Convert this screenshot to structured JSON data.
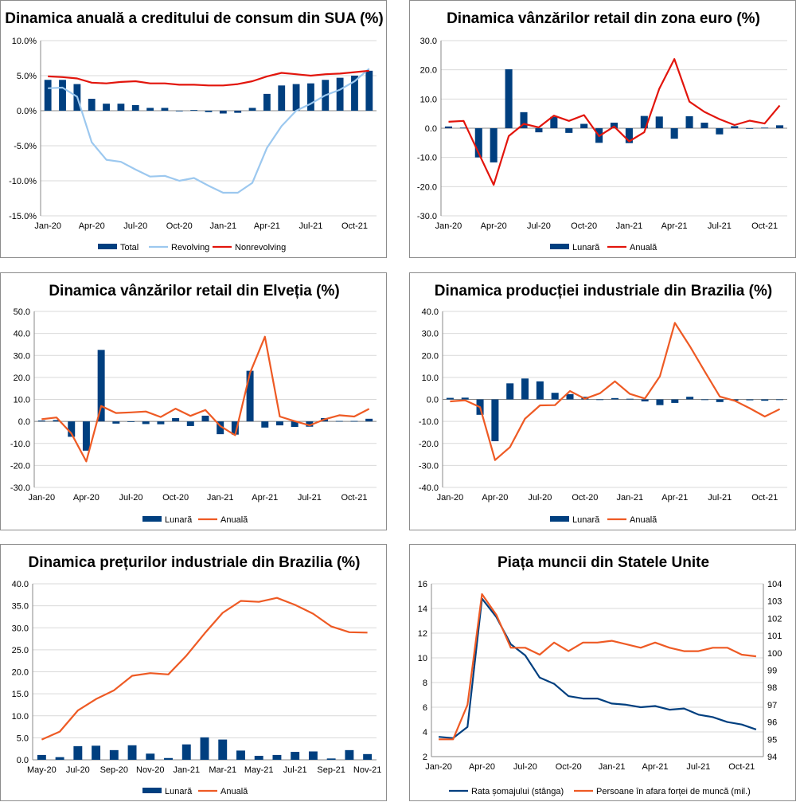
{
  "colors": {
    "bar": "#003f7f",
    "red": "#e2150c",
    "orange": "#ee5a24",
    "light_blue": "#9cc8ef",
    "grid": "#d9d9d9",
    "axis": "#888888"
  },
  "chart_data": [
    {
      "type": "bar",
      "title": "Dinamica anuală a creditului de consum din SUA (%)",
      "x_tick_labels": [
        "Jan-20",
        "Apr-20",
        "Jul-20",
        "Oct-20",
        "Jan-21",
        "Apr-21",
        "Jul-21",
        "Oct-21"
      ],
      "y_tick_labels": [
        "10.0%",
        "5.0%",
        "0.0%",
        "-5.0%",
        "-10.0%",
        "-15.0%"
      ],
      "ylim": [
        -15,
        10
      ],
      "categories": [
        "Jan-20",
        "Feb-20",
        "Mar-20",
        "Apr-20",
        "May-20",
        "Jun-20",
        "Jul-20",
        "Aug-20",
        "Sep-20",
        "Oct-20",
        "Nov-20",
        "Dec-20",
        "Jan-21",
        "Feb-21",
        "Mar-21",
        "Apr-21",
        "May-21",
        "Jun-21",
        "Jul-21",
        "Aug-21",
        "Sep-21",
        "Oct-21",
        "Nov-21"
      ],
      "series": [
        {
          "name": "Total",
          "kind": "bar",
          "color": "#003f7f",
          "values": [
            4.4,
            4.4,
            3.8,
            1.7,
            1.0,
            1.0,
            0.8,
            0.4,
            0.4,
            0.0,
            0.1,
            -0.2,
            -0.4,
            -0.3,
            0.4,
            2.4,
            3.6,
            3.8,
            3.9,
            4.4,
            4.7,
            5.0,
            5.7
          ]
        },
        {
          "name": "Revolving",
          "kind": "line",
          "color": "#9cc8ef",
          "values": [
            3.2,
            3.3,
            2.0,
            -4.5,
            -7.0,
            -7.3,
            -8.4,
            -9.4,
            -9.3,
            -10.0,
            -9.6,
            -10.7,
            -11.7,
            -11.7,
            -10.3,
            -5.3,
            -2.2,
            0.0,
            1.0,
            2.2,
            3.0,
            4.2,
            6.0
          ]
        },
        {
          "name": "Nonrevolving",
          "kind": "line",
          "color": "#e2150c",
          "values": [
            4.9,
            4.8,
            4.6,
            4.0,
            3.9,
            4.1,
            4.2,
            3.9,
            3.9,
            3.7,
            3.7,
            3.6,
            3.6,
            3.8,
            4.2,
            4.9,
            5.4,
            5.2,
            5.0,
            5.2,
            5.3,
            5.5,
            5.7
          ]
        }
      ]
    },
    {
      "type": "bar",
      "title": "Dinamica vânzărilor retail din zona euro (%)",
      "x_tick_labels": [
        "Jan-20",
        "Apr-20",
        "Jul-20",
        "Oct-20",
        "Jan-21",
        "Apr-21",
        "Jul-21",
        "Oct-21"
      ],
      "y_tick_labels": [
        "30.0",
        "20.0",
        "10.0",
        "0.0",
        "-10.0",
        "-20.0",
        "-30.0"
      ],
      "ylim": [
        -30,
        30
      ],
      "categories": [
        "Jan-20",
        "Feb-20",
        "Mar-20",
        "Apr-20",
        "May-20",
        "Jun-20",
        "Jul-20",
        "Aug-20",
        "Sep-20",
        "Oct-20",
        "Nov-20",
        "Dec-20",
        "Jan-21",
        "Feb-21",
        "Mar-21",
        "Apr-21",
        "May-21",
        "Jun-21",
        "Jul-21",
        "Aug-21",
        "Sep-21",
        "Oct-21",
        "Nov-21"
      ],
      "series": [
        {
          "name": "Lunară",
          "kind": "bar",
          "color": "#003f7f",
          "values": [
            0.6,
            0.2,
            -10.0,
            -11.7,
            20.2,
            5.5,
            -1.4,
            3.9,
            -1.6,
            1.5,
            -5.0,
            1.9,
            -5.1,
            4.2,
            4.0,
            -3.6,
            4.1,
            1.9,
            -2.1,
            0.7,
            -0.2,
            0.2,
            1.0
          ]
        },
        {
          "name": "Anuală",
          "kind": "line",
          "color": "#e2150c",
          "values": [
            2.2,
            2.5,
            -8.5,
            -19.4,
            -2.7,
            1.5,
            0.3,
            4.3,
            2.5,
            4.5,
            -2.7,
            0.6,
            -4.5,
            -1.4,
            13.5,
            23.7,
            9.1,
            5.6,
            3.1,
            1.1,
            2.6,
            1.6,
            7.8
          ]
        }
      ]
    },
    {
      "type": "bar",
      "title": "Dinamica vânzărilor retail din Elveția (%)",
      "x_tick_labels": [
        "Jan-20",
        "Apr-20",
        "Jul-20",
        "Oct-20",
        "Jan-21",
        "Apr-21",
        "Jul-21",
        "Oct-21"
      ],
      "y_tick_labels": [
        "50.0",
        "40.0",
        "30.0",
        "20.0",
        "10.0",
        "0.0",
        "-10.0",
        "-20.0",
        "-30.0"
      ],
      "ylim": [
        -30,
        50
      ],
      "categories": [
        "Jan-20",
        "Feb-20",
        "Mar-20",
        "Apr-20",
        "May-20",
        "Jun-20",
        "Jul-20",
        "Aug-20",
        "Sep-20",
        "Oct-20",
        "Nov-20",
        "Dec-20",
        "Jan-21",
        "Feb-21",
        "Mar-21",
        "Apr-21",
        "May-21",
        "Jun-21",
        "Jul-21",
        "Aug-21",
        "Sep-21",
        "Oct-21",
        "Nov-21"
      ],
      "series": [
        {
          "name": "Lunară",
          "kind": "bar",
          "color": "#003f7f",
          "values": [
            0.4,
            0.6,
            -7.0,
            -13.3,
            32.5,
            -1.0,
            -0.1,
            -1.2,
            -1.3,
            1.5,
            -2.1,
            2.6,
            -5.8,
            -6.0,
            23.0,
            -2.8,
            -1.8,
            -2.5,
            -2.4,
            1.5,
            0.2,
            0.2,
            1.2
          ]
        },
        {
          "name": "Anuală",
          "kind": "line",
          "color": "#ee5a24",
          "values": [
            1.0,
            1.8,
            -5.5,
            -18.2,
            7.0,
            3.8,
            4.1,
            4.5,
            2.0,
            5.8,
            2.5,
            5.2,
            -2.1,
            -6.3,
            22.0,
            38.5,
            2.2,
            0.1,
            -1.8,
            0.9,
            2.8,
            2.2,
            5.7
          ]
        }
      ]
    },
    {
      "type": "bar",
      "title": "Dinamica producției industriale din Brazilia (%)",
      "x_tick_labels": [
        "Jan-20",
        "Apr-20",
        "Jul-20",
        "Oct-20",
        "Jan-21",
        "Apr-21",
        "Jul-21",
        "Oct-21"
      ],
      "y_tick_labels": [
        "40.0",
        "30.0",
        "20.0",
        "10.0",
        "0.0",
        "-10.0",
        "-20.0",
        "-30.0",
        "-40.0"
      ],
      "ylim": [
        -40,
        40
      ],
      "categories": [
        "Jan-20",
        "Feb-20",
        "Mar-20",
        "Apr-20",
        "May-20",
        "Jun-20",
        "Jul-20",
        "Aug-20",
        "Sep-20",
        "Oct-20",
        "Nov-20",
        "Dec-20",
        "Jan-21",
        "Feb-21",
        "Mar-21",
        "Apr-21",
        "May-21",
        "Jun-21",
        "Jul-21",
        "Aug-21",
        "Sep-21",
        "Oct-21",
        "Nov-21"
      ],
      "series": [
        {
          "name": "Lunară",
          "kind": "bar",
          "color": "#003f7f",
          "values": [
            0.7,
            0.8,
            -7.0,
            -19.0,
            7.3,
            9.5,
            8.2,
            3.0,
            2.4,
            1.2,
            -0.2,
            0.6,
            0.3,
            -0.9,
            -2.6,
            -1.6,
            1.2,
            -0.3,
            -1.2,
            -0.6,
            -0.4,
            -0.6,
            0.0
          ]
        },
        {
          "name": "Anuală",
          "kind": "line",
          "color": "#ee5a24",
          "values": [
            -0.9,
            -0.4,
            -3.5,
            -27.6,
            -21.7,
            -8.8,
            -2.7,
            -2.6,
            3.8,
            0.3,
            2.8,
            8.2,
            2.5,
            0.4,
            10.5,
            34.8,
            24.2,
            12.6,
            1.3,
            -0.6,
            -4.0,
            -7.8,
            -4.4
          ]
        }
      ]
    },
    {
      "type": "bar",
      "title": "Dinamica prețurilor industriale din Brazilia (%)",
      "x_tick_labels": [
        "May-20",
        "Jul-20",
        "Sep-20",
        "Nov-20",
        "Jan-21",
        "Mar-21",
        "May-21",
        "Jul-21",
        "Sep-21",
        "Nov-21"
      ],
      "y_tick_labels": [
        "40.0",
        "35.0",
        "30.0",
        "25.0",
        "20.0",
        "15.0",
        "10.0",
        "5.0",
        "0.0"
      ],
      "ylim": [
        0,
        40
      ],
      "categories": [
        "May-20",
        "Jun-20",
        "Jul-20",
        "Aug-20",
        "Sep-20",
        "Oct-20",
        "Nov-20",
        "Dec-20",
        "Jan-21",
        "Feb-21",
        "Mar-21",
        "Apr-21",
        "May-21",
        "Jun-21",
        "Jul-21",
        "Aug-21",
        "Sep-21",
        "Oct-21",
        "Nov-21"
      ],
      "series": [
        {
          "name": "Lunară",
          "kind": "bar",
          "color": "#003f7f",
          "values": [
            1.1,
            0.6,
            3.1,
            3.2,
            2.2,
            3.3,
            1.4,
            0.4,
            3.5,
            5.1,
            4.6,
            2.1,
            0.9,
            1.1,
            1.8,
            1.9,
            0.3,
            2.2,
            1.3
          ]
        },
        {
          "name": "Anuală",
          "kind": "line",
          "color": "#ee5a24",
          "values": [
            4.6,
            6.4,
            11.2,
            13.8,
            15.8,
            19.1,
            19.7,
            19.4,
            23.7,
            28.7,
            33.4,
            36.1,
            35.9,
            36.8,
            35.2,
            33.2,
            30.3,
            29.0,
            28.9
          ]
        }
      ]
    },
    {
      "type": "line",
      "title": "Piața muncii din Statele Unite",
      "x_tick_labels": [
        "Jan-20",
        "Apr-20",
        "Jul-20",
        "Oct-20",
        "Jan-21",
        "Apr-21",
        "Jul-21",
        "Oct-21"
      ],
      "y_tick_labels": [
        "16",
        "14",
        "12",
        "10",
        "8",
        "6",
        "4",
        "2"
      ],
      "y2_tick_labels": [
        "104",
        "103",
        "102",
        "101",
        "100",
        "99",
        "98",
        "97",
        "96",
        "95",
        "94"
      ],
      "ylim": [
        2,
        16
      ],
      "y2lim": [
        94,
        104
      ],
      "categories": [
        "Jan-20",
        "Feb-20",
        "Mar-20",
        "Apr-20",
        "May-20",
        "Jun-20",
        "Jul-20",
        "Aug-20",
        "Sep-20",
        "Oct-20",
        "Nov-20",
        "Dec-20",
        "Jan-21",
        "Feb-21",
        "Mar-21",
        "Apr-21",
        "May-21",
        "Jun-21",
        "Jul-21",
        "Aug-21",
        "Sep-21",
        "Oct-21",
        "Nov-21"
      ],
      "series": [
        {
          "name": "Rata șomajului (stânga)",
          "kind": "line",
          "axis": "left",
          "color": "#003f7f",
          "values": [
            3.6,
            3.5,
            4.4,
            14.8,
            13.3,
            11.1,
            10.2,
            8.4,
            7.9,
            6.9,
            6.7,
            6.7,
            6.3,
            6.2,
            6.0,
            6.1,
            5.8,
            5.9,
            5.4,
            5.2,
            4.8,
            4.6,
            4.2
          ]
        },
        {
          "name": "Persoane în afara forței de muncă (mil.)",
          "kind": "line",
          "axis": "right",
          "color": "#ee5a24",
          "values": [
            95.0,
            95.0,
            97.0,
            103.4,
            102.2,
            100.3,
            100.3,
            99.9,
            100.6,
            100.1,
            100.6,
            100.6,
            100.7,
            100.5,
            100.3,
            100.6,
            100.3,
            100.1,
            100.1,
            100.3,
            100.3,
            99.9,
            99.8
          ]
        }
      ]
    }
  ]
}
